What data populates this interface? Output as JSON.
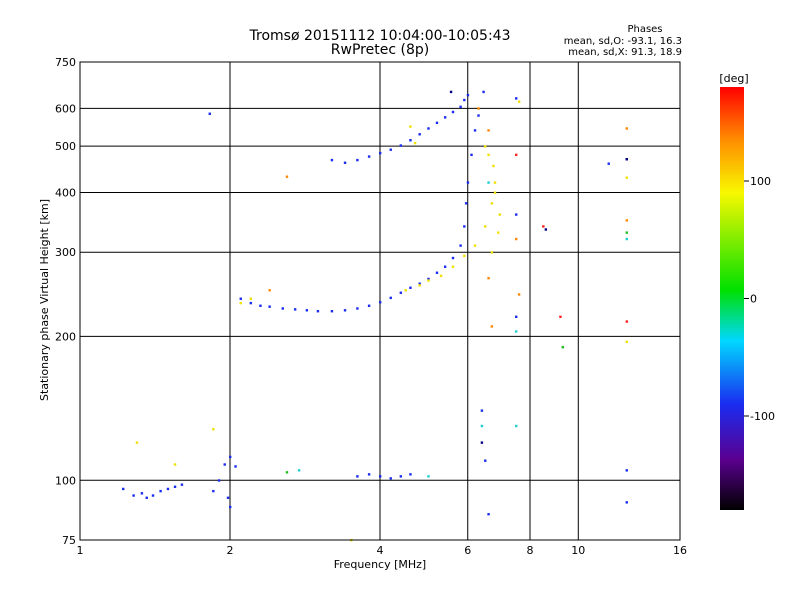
{
  "chart_data": {
    "type": "scatter",
    "title": "Tromsø 20151112 10:04:00-10:05:43",
    "subtitle": "RwPretec (8p)",
    "xlabel": "Frequency [MHz]",
    "ylabel": "Stationary phase Virtual Height [km]",
    "x_scale": "log",
    "y_scale": "log",
    "xlim": [
      1,
      16
    ],
    "ylim": [
      75,
      750
    ],
    "x_ticks": [
      1,
      2,
      4,
      6,
      8,
      10,
      16
    ],
    "x_tick_labels": [
      "1",
      "2",
      "4",
      "6",
      "8",
      "10",
      "16"
    ],
    "y_ticks": [
      75,
      100,
      200,
      300,
      400,
      500,
      600,
      750
    ],
    "y_tick_labels": [
      "75",
      "100",
      "200",
      "300",
      "400",
      "500",
      "600",
      "750"
    ],
    "grid": true,
    "stats": {
      "heading": "Phases",
      "line_o": "mean, sd,O: -93.1, 16.3",
      "line_x": "mean, sd,X:  91.3, 18.9"
    },
    "colorbar": {
      "label": "[deg]",
      "range": [
        -180,
        180
      ],
      "ticks": [
        100,
        0,
        -100
      ],
      "tick_labels": [
        "100",
        "0",
        "-100"
      ]
    },
    "series": [
      {
        "mode": "O",
        "color": "#1a2cf0",
        "points": [
          [
            1.22,
            96
          ],
          [
            1.28,
            93
          ],
          [
            1.33,
            94
          ],
          [
            1.36,
            92
          ],
          [
            1.4,
            93
          ],
          [
            1.45,
            95
          ],
          [
            1.5,
            96
          ],
          [
            1.55,
            97
          ],
          [
            1.6,
            98
          ],
          [
            1.85,
            95
          ],
          [
            1.9,
            100
          ],
          [
            1.95,
            108
          ],
          [
            2.0,
            112
          ],
          [
            2.05,
            107
          ],
          [
            1.98,
            92
          ],
          [
            2.0,
            88
          ],
          [
            1.82,
            585
          ],
          [
            2.1,
            240
          ],
          [
            2.2,
            235
          ],
          [
            2.3,
            232
          ],
          [
            2.4,
            231
          ],
          [
            2.55,
            229
          ],
          [
            2.7,
            228
          ],
          [
            2.85,
            227
          ],
          [
            3.0,
            226
          ],
          [
            3.2,
            226
          ],
          [
            3.4,
            227
          ],
          [
            3.6,
            229
          ],
          [
            3.8,
            232
          ],
          [
            4.0,
            236
          ],
          [
            4.2,
            241
          ],
          [
            4.4,
            247
          ],
          [
            4.6,
            253
          ],
          [
            4.8,
            258
          ],
          [
            5.0,
            264
          ],
          [
            5.2,
            272
          ],
          [
            5.4,
            280
          ],
          [
            5.6,
            292
          ],
          [
            5.8,
            310
          ],
          [
            5.9,
            340
          ],
          [
            5.95,
            380
          ],
          [
            6.0,
            420
          ],
          [
            6.1,
            480
          ],
          [
            6.2,
            540
          ],
          [
            6.3,
            580
          ],
          [
            3.2,
            468
          ],
          [
            3.4,
            462
          ],
          [
            3.6,
            468
          ],
          [
            3.8,
            476
          ],
          [
            4.0,
            484
          ],
          [
            4.2,
            492
          ],
          [
            4.4,
            502
          ],
          [
            4.6,
            515
          ],
          [
            4.8,
            530
          ],
          [
            5.0,
            545
          ],
          [
            5.2,
            560
          ],
          [
            5.4,
            575
          ],
          [
            5.6,
            590
          ],
          [
            5.8,
            605
          ],
          [
            5.9,
            625
          ],
          [
            6.0,
            640
          ],
          [
            3.6,
            102
          ],
          [
            3.8,
            103
          ],
          [
            4.0,
            102
          ],
          [
            4.2,
            101
          ],
          [
            4.4,
            102
          ],
          [
            4.6,
            103
          ],
          [
            6.45,
            650
          ],
          [
            6.4,
            140
          ],
          [
            6.5,
            110
          ],
          [
            6.6,
            85
          ],
          [
            7.5,
            630
          ],
          [
            7.5,
            360
          ],
          [
            7.5,
            220
          ],
          [
            11.5,
            460
          ],
          [
            12.5,
            470
          ],
          [
            12.5,
            105
          ],
          [
            12.5,
            90
          ]
        ]
      },
      {
        "mode": "X",
        "color": "#f0e000",
        "points": [
          [
            4.5,
            250
          ],
          [
            4.8,
            256
          ],
          [
            5.0,
            262
          ],
          [
            5.3,
            268
          ],
          [
            5.6,
            280
          ],
          [
            5.9,
            295
          ],
          [
            6.2,
            310
          ],
          [
            6.5,
            340
          ],
          [
            6.7,
            380
          ],
          [
            6.8,
            420
          ],
          [
            6.75,
            455
          ],
          [
            6.6,
            480
          ],
          [
            6.5,
            500
          ],
          [
            6.7,
            300
          ],
          [
            6.9,
            330
          ],
          [
            6.95,
            360
          ],
          [
            6.8,
            400
          ],
          [
            2.1,
            235
          ],
          [
            2.2,
            240
          ],
          [
            3.5,
            75
          ],
          [
            7.6,
            620
          ],
          [
            12.5,
            430
          ],
          [
            12.5,
            195
          ],
          [
            1.3,
            120
          ],
          [
            1.55,
            108
          ],
          [
            1.85,
            128
          ],
          [
            4.6,
            550
          ],
          [
            4.7,
            508
          ]
        ]
      },
      {
        "mode": "noise",
        "color": "#ff8800",
        "points": [
          [
            2.4,
            250
          ],
          [
            2.6,
            432
          ],
          [
            6.6,
            540
          ],
          [
            6.6,
            265
          ],
          [
            6.7,
            210
          ],
          [
            7.5,
            320
          ],
          [
            7.6,
            245
          ],
          [
            12.5,
            545
          ],
          [
            12.5,
            350
          ],
          [
            6.3,
            600
          ]
        ]
      },
      {
        "mode": "noise",
        "color": "#ff2020",
        "points": [
          [
            7.5,
            480
          ],
          [
            9.2,
            220
          ],
          [
            12.5,
            215
          ],
          [
            8.5,
            340
          ]
        ]
      },
      {
        "mode": "noise",
        "color": "#20d0d0",
        "points": [
          [
            2.75,
            105
          ],
          [
            5.0,
            102
          ],
          [
            7.5,
            205
          ],
          [
            6.6,
            420
          ],
          [
            12.5,
            320
          ],
          [
            6.4,
            130
          ],
          [
            7.5,
            130
          ]
        ]
      },
      {
        "mode": "noise",
        "color": "#20c020",
        "points": [
          [
            2.6,
            104
          ],
          [
            9.3,
            190
          ],
          [
            12.5,
            330
          ]
        ]
      },
      {
        "mode": "noise",
        "color": "#000080",
        "points": [
          [
            6.4,
            120
          ],
          [
            12.5,
            470
          ],
          [
            8.6,
            335
          ],
          [
            5.55,
            650
          ]
        ]
      }
    ]
  }
}
